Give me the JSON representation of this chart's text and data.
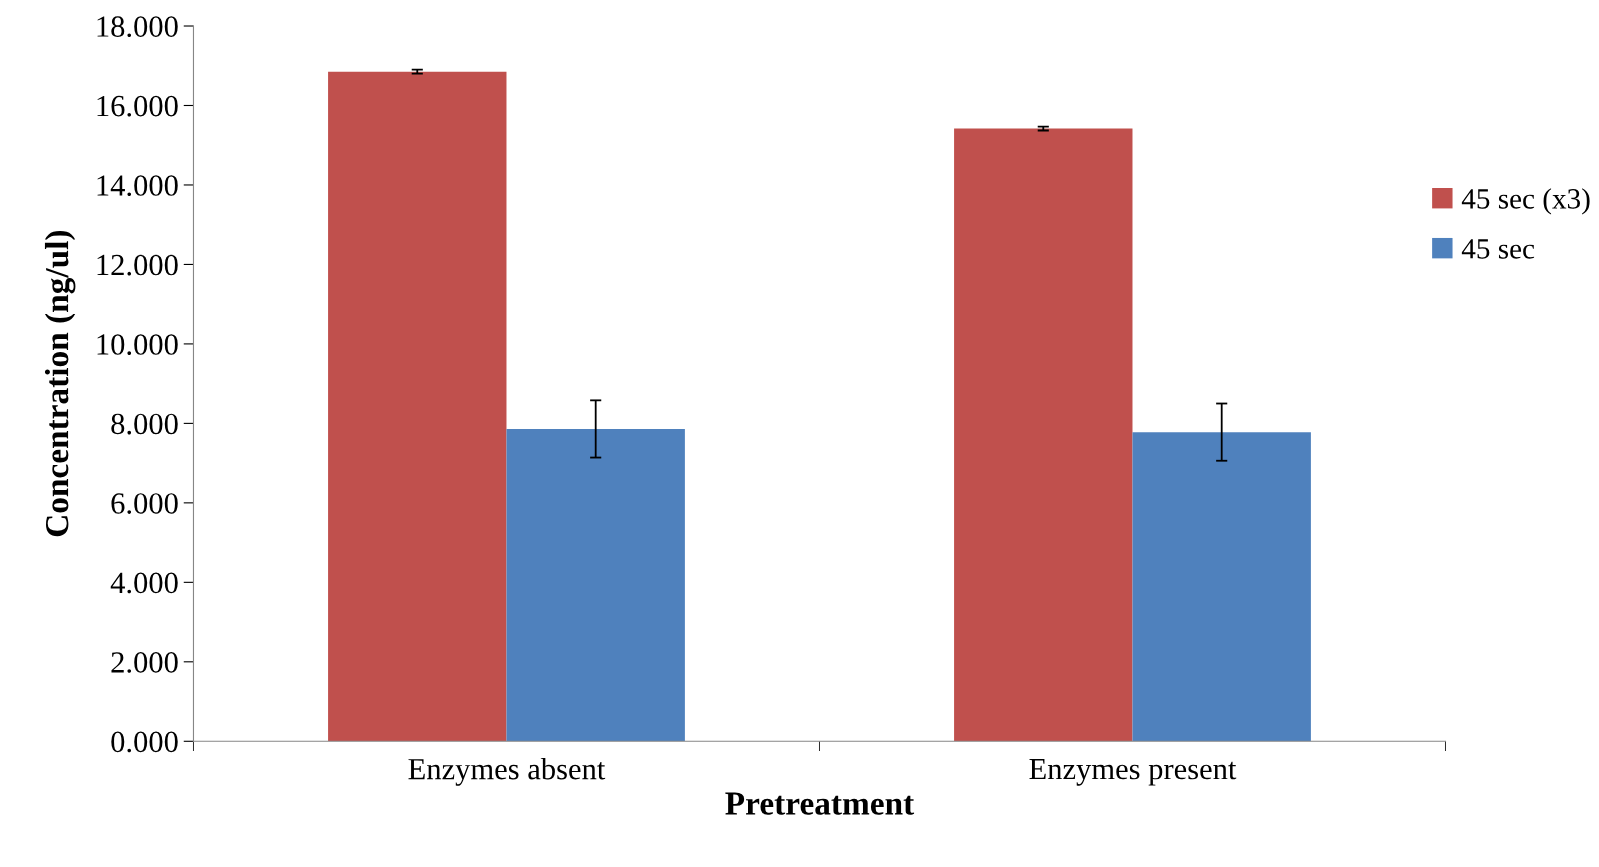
{
  "chart_data": {
    "type": "bar",
    "xlabel": "Pretreatment",
    "ylabel": "Concentration (ng/ul)",
    "categories": [
      "Enzymes absent",
      "Enzymes present"
    ],
    "series": [
      {
        "name": "45 sec (x3)",
        "color": "#c0504d",
        "values": [
          16.85,
          15.42
        ],
        "errors": [
          0.05,
          0.05
        ]
      },
      {
        "name": "45 sec",
        "color": "#4f81bd",
        "values": [
          7.86,
          7.78
        ],
        "errors": [
          0.72,
          0.72
        ]
      }
    ],
    "ylim": [
      0,
      18
    ],
    "yticks": [
      {
        "value": 0,
        "label": "0.000"
      },
      {
        "value": 2,
        "label": "2.000"
      },
      {
        "value": 4,
        "label": "4.000"
      },
      {
        "value": 6,
        "label": "6.000"
      },
      {
        "value": 8,
        "label": "8.000"
      },
      {
        "value": 10,
        "label": "10.000"
      },
      {
        "value": 12,
        "label": "12.000"
      },
      {
        "value": 14,
        "label": "14.000"
      },
      {
        "value": 16,
        "label": "16.000"
      },
      {
        "value": 18,
        "label": "18.000"
      }
    ],
    "grid": false,
    "legend": "right"
  }
}
